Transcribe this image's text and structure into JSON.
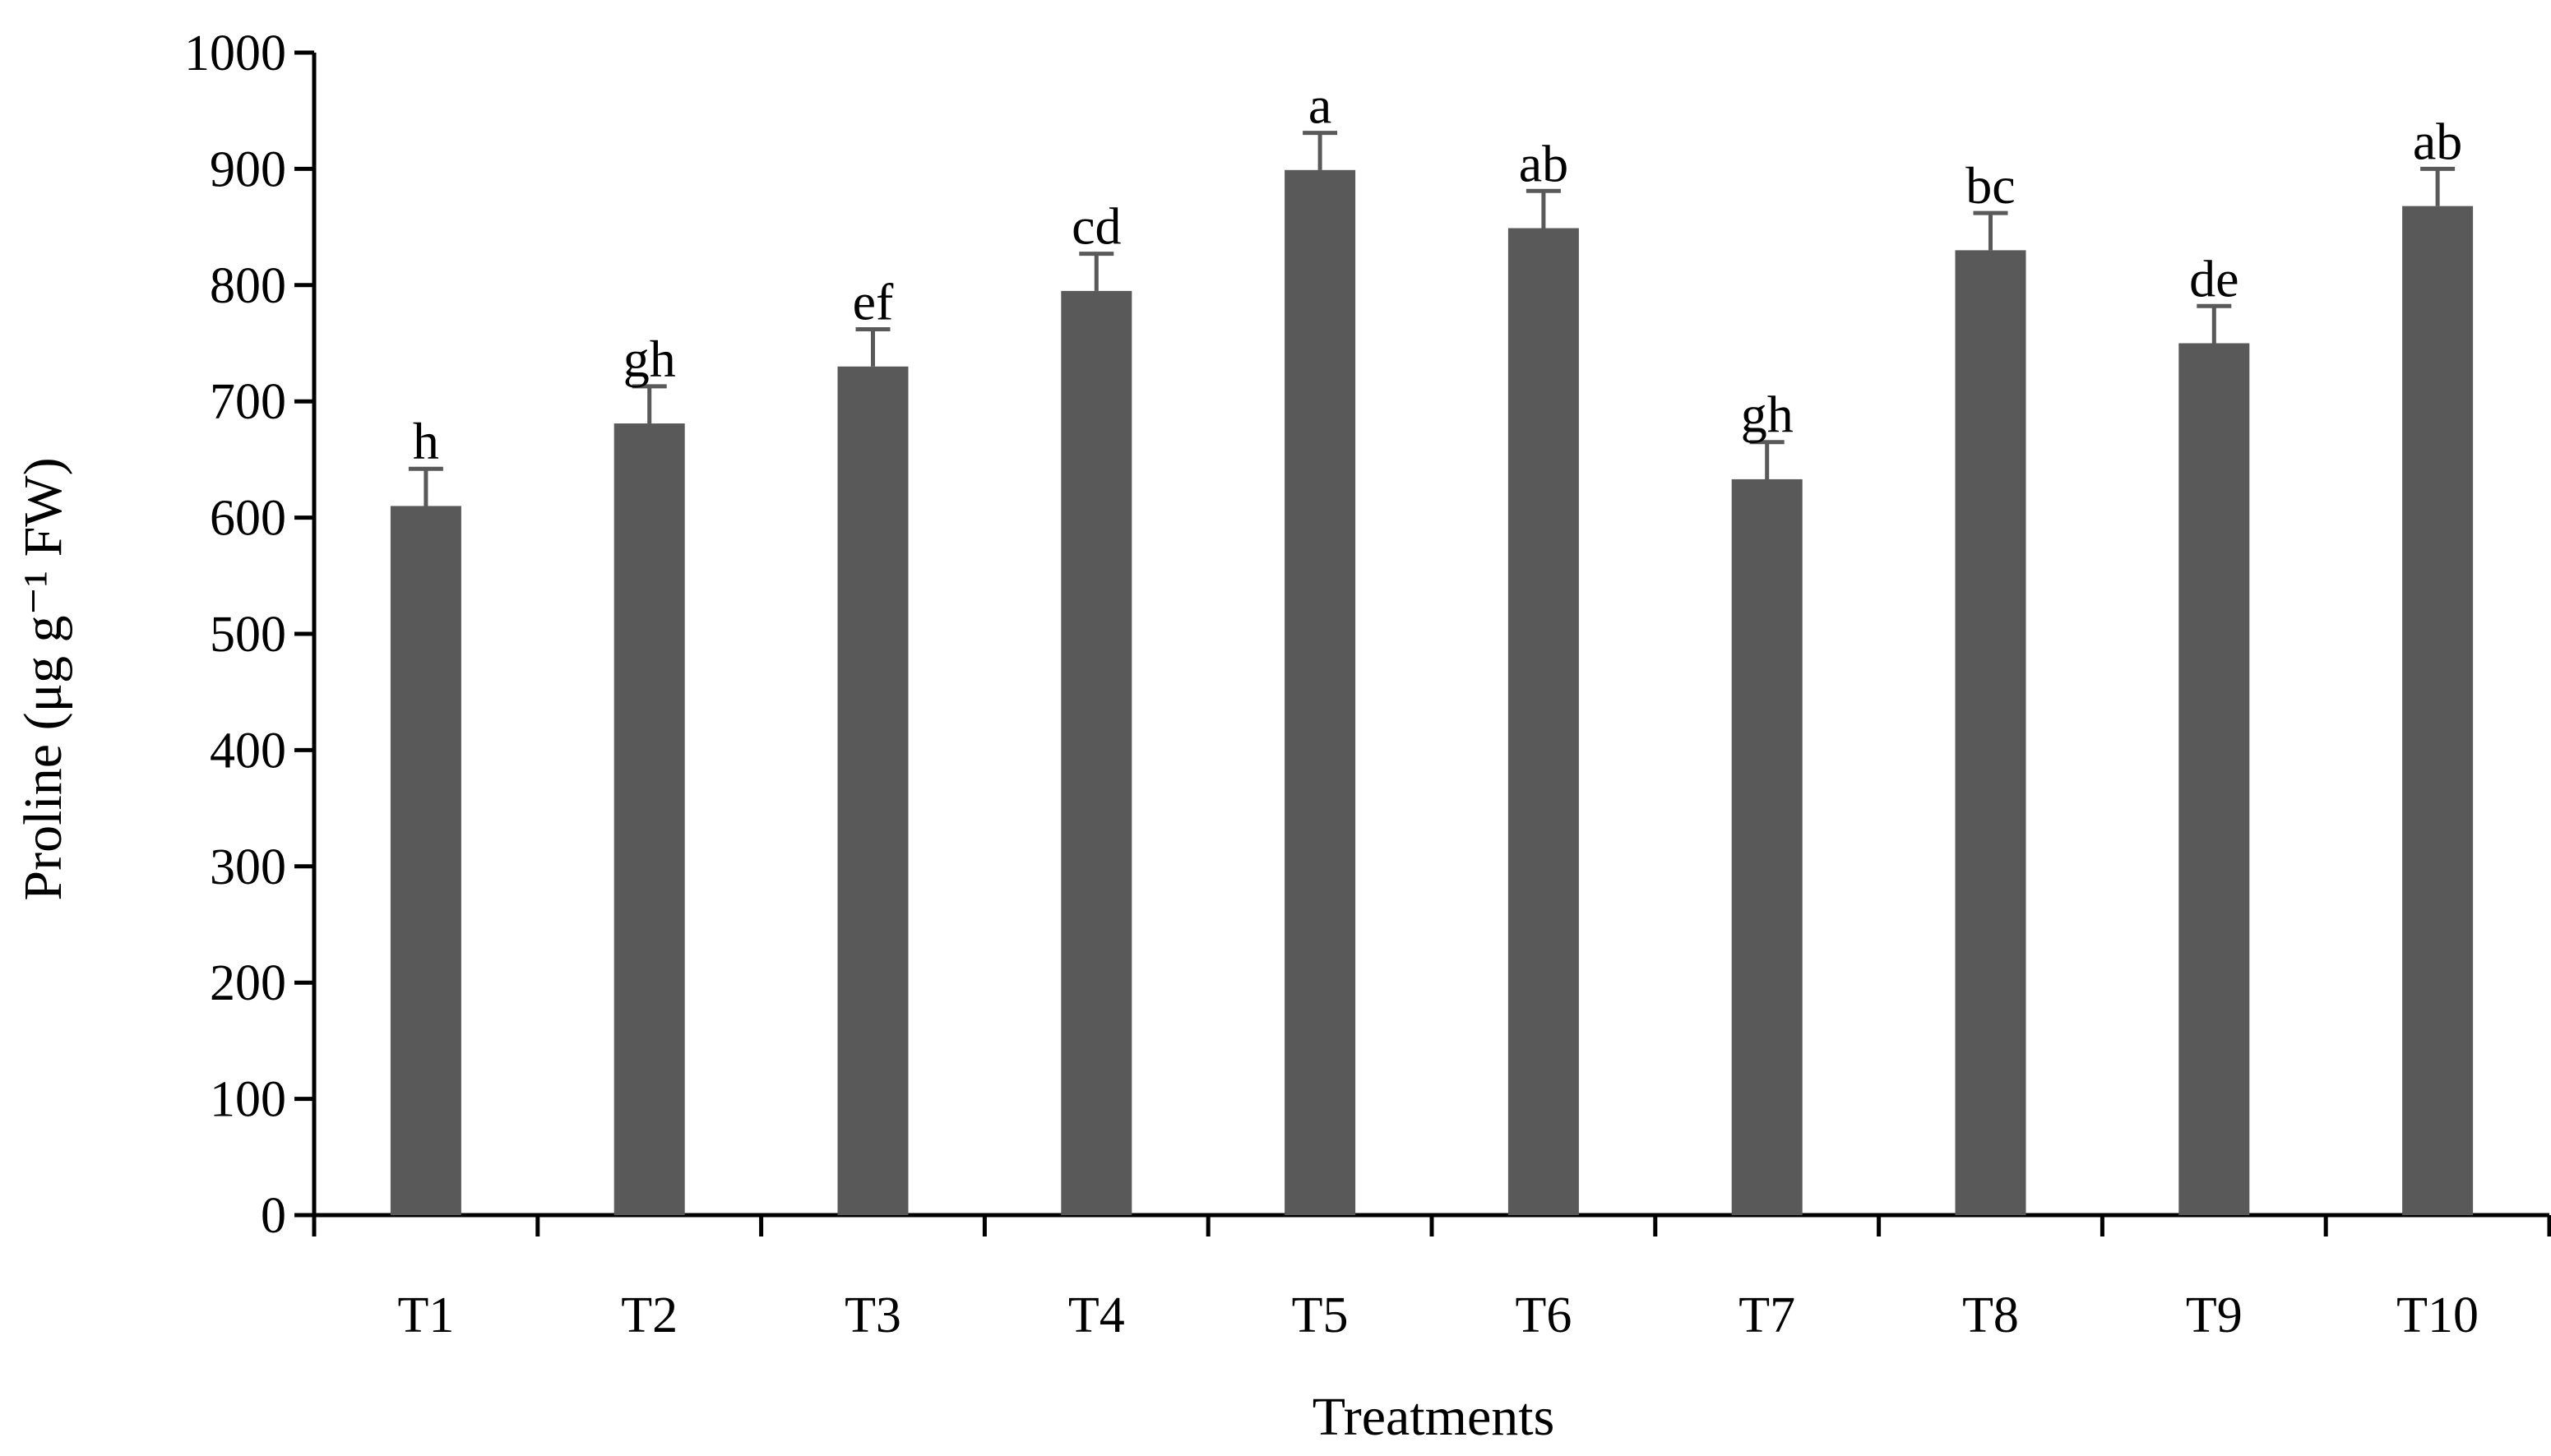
{
  "chart_data": {
    "type": "bar",
    "categories": [
      "T1",
      "T2",
      "T3",
      "T4",
      "T5",
      "T6",
      "T7",
      "T8",
      "T9",
      "T10"
    ],
    "values": [
      610,
      681,
      730,
      795,
      899,
      849,
      633,
      830,
      750,
      868
    ],
    "error_plus": [
      32,
      32,
      32,
      32,
      32,
      32,
      32,
      32,
      32,
      32
    ],
    "significance_letters": [
      "h",
      "gh",
      "ef",
      "cd",
      "a",
      "ab",
      "gh",
      "bc",
      "de",
      "ab"
    ],
    "xlabel": "Treatments",
    "ylabel": "Proline (μg g⁻¹ FW)",
    "ylim": [
      0,
      1000
    ],
    "yticks": [
      0,
      100,
      200,
      300,
      400,
      500,
      600,
      700,
      800,
      900,
      1000
    ],
    "bar_color": "#595959",
    "grid": false,
    "legend": "none"
  }
}
